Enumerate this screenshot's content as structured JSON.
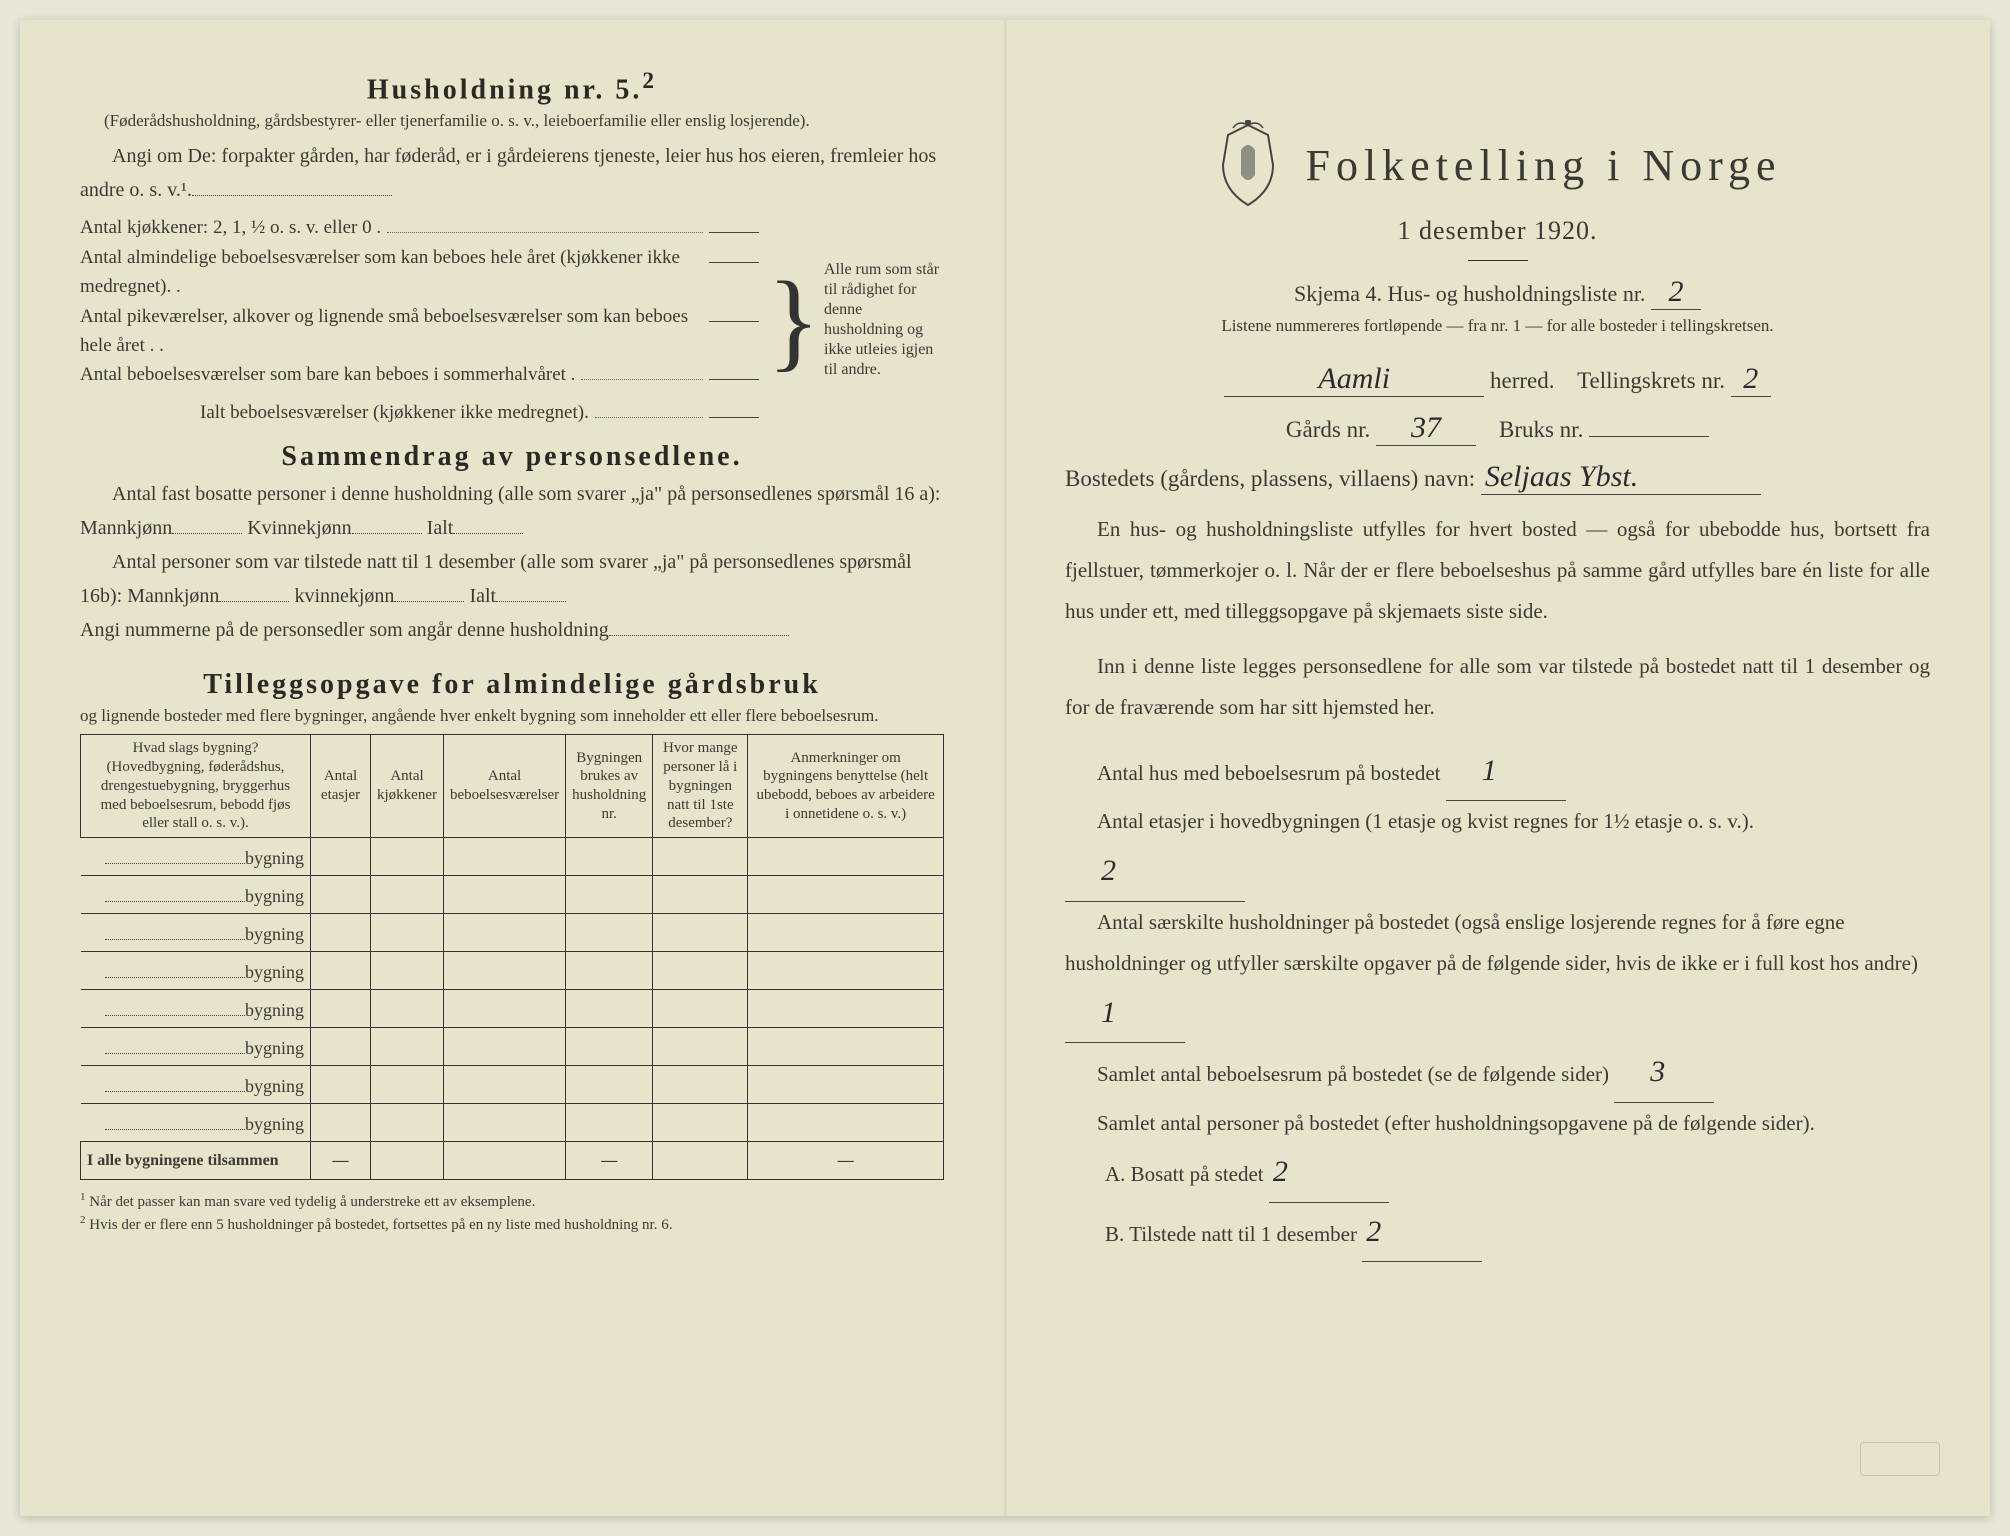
{
  "left": {
    "h5_title": "Husholdning nr. 5.",
    "h5_sup": "2",
    "h5_note": "(Føderådshusholdning, gårdsbestyrer- eller tjenerfamilie o. s. v., leieboerfamilie eller enslig losjerende).",
    "angi_text": "Angi om De:  forpakter gården, har føderåd, er i gårdeierens tjeneste, leier hus hos eieren, fremleier hos andre o. s. v.¹.",
    "brace_lines": [
      "Antal kjøkkener: 2, 1, ½ o. s. v. eller 0 .",
      "Antal almindelige beboelsesværelser som kan beboes hele året (kjøkkener ikke medregnet). .",
      "Antal pikeværelser, alkover og lignende små beboelsesværelser som kan beboes hele året . .",
      "Antal beboelsesværelser som bare kan beboes i sommerhalvåret .",
      "Ialt beboelsesværelser (kjøkkener ikke medregnet)."
    ],
    "brace_right": "Alle rum som står til rådighet for denne husholdning og ikke utleies igjen til andre.",
    "sammendrag_title": "Sammendrag av personsedlene.",
    "sammendrag_p1": "Antal fast bosatte personer i denne husholdning (alle som svarer „ja\" på personsedlenes spørsmål 16 a): Mannkjønn",
    "sammendrag_kvinne": " Kvinnekjønn",
    "sammendrag_ialt": " Ialt",
    "sammendrag_p2": "Antal personer som var tilstede natt til 1 desember (alle som svarer „ja\" på personsedlenes spørsmål 16b): Mannkjønn",
    "sammendrag_kvinne2": " kvinnekjønn",
    "sammendrag_ialt2": " Ialt",
    "angi_nummerne": "Angi nummerne på de personsedler som angår denne husholdning",
    "tillegg_title": "Tilleggsopgave for almindelige gårdsbruk",
    "tillegg_sub": "og lignende bosteder med flere bygninger, angående hver enkelt bygning som inneholder ett eller flere beboelsesrum.",
    "table": {
      "headers": [
        "Hvad slags bygning?\n(Hovedbygning, føderådshus, drengestue­bygning, bryggerhus med beboelsesrum, bebodd fjøs eller stall o. s. v.).",
        "Antal etasjer",
        "Antal kjøkkener",
        "Antal beboelsesværelser",
        "Bygningen brukes av husholdning nr.",
        "Hvor mange personer lå i bygningen natt til 1ste desember?",
        "Anmerkninger om bygningens benyttelse (helt ubebodd, beboes av arbeidere i onnetidene o. s. v.)"
      ],
      "row_label": "bygning",
      "row_count": 8,
      "footer_label": "I alle bygningene tilsammen"
    },
    "footnote1": "Når det passer kan man svare ved tydelig å understreke ett av eksemplene.",
    "footnote2": "Hvis der er flere enn 5 husholdninger på bostedet, fortsettes på en ny liste med husholdning nr. 6."
  },
  "right": {
    "main_title": "Folketelling  i  Norge",
    "subtitle": "1 desember 1920.",
    "skjema_label": "Skjema 4.  Hus- og husholdningsliste nr.",
    "skjema_nr": "2",
    "listene_note": "Listene nummereres fortløpende — fra nr. 1 — for alle bosteder i tellingskretsen.",
    "herred_value": "Aamli",
    "herred_label": "herred.",
    "tellingskrets_label": "Tellingskrets nr.",
    "tellingskrets_nr": "2",
    "gards_label": "Gårds nr.",
    "gards_nr": "37",
    "bruks_label": "Bruks nr.",
    "bruks_nr": "",
    "bostedets_label": "Bostedets (gårdens, plassens, villaens) navn:",
    "bostedets_value": "Seljaas  Ybst.",
    "para1": "En hus- og husholdningsliste utfylles for hvert bosted — også for ubebodde hus, bortsett fra fjellstuer, tømmerkojer o. l.  Når der er flere beboelseshus på samme gård utfylles bare én liste for alle hus under ett, med tilleggsopgave på skjemaets siste side.",
    "para2": "Inn i denne liste legges personsedlene for alle som var tilstede på bostedet natt til 1 desember og for de fraværende som har sitt hjemsted her.",
    "q_hus": "Antal hus med beboelsesrum på bostedet",
    "q_hus_val": "1",
    "q_etasjer": "Antal etasjer i hovedbygningen (1 etasje og kvist regnes for 1½ etasje o. s. v.).",
    "q_etasjer_val": "2",
    "q_hushold": "Antal særskilte husholdninger på bostedet (også enslige losjerende regnes for å føre egne husholdninger og utfyller særskilte opgaver på de følgende sider, hvis de ikke er i full kost hos andre)",
    "q_hushold_val": "1",
    "q_beboelsesrum": "Samlet antal beboelsesrum på bostedet (se de følgende sider)",
    "q_beboelsesrum_val": "3",
    "q_personer": "Samlet antal personer på bostedet (efter husholdningsopgavene på de følgende sider).",
    "q_a_label": "A.  Bosatt på stedet",
    "q_a_val": "2",
    "q_b_label": "B.  Tilstede natt til 1 desember",
    "q_b_val": "2"
  },
  "colors": {
    "paper": "#e6e4ca",
    "ink": "#3a3a35",
    "handwriting": "#2a2a30"
  }
}
